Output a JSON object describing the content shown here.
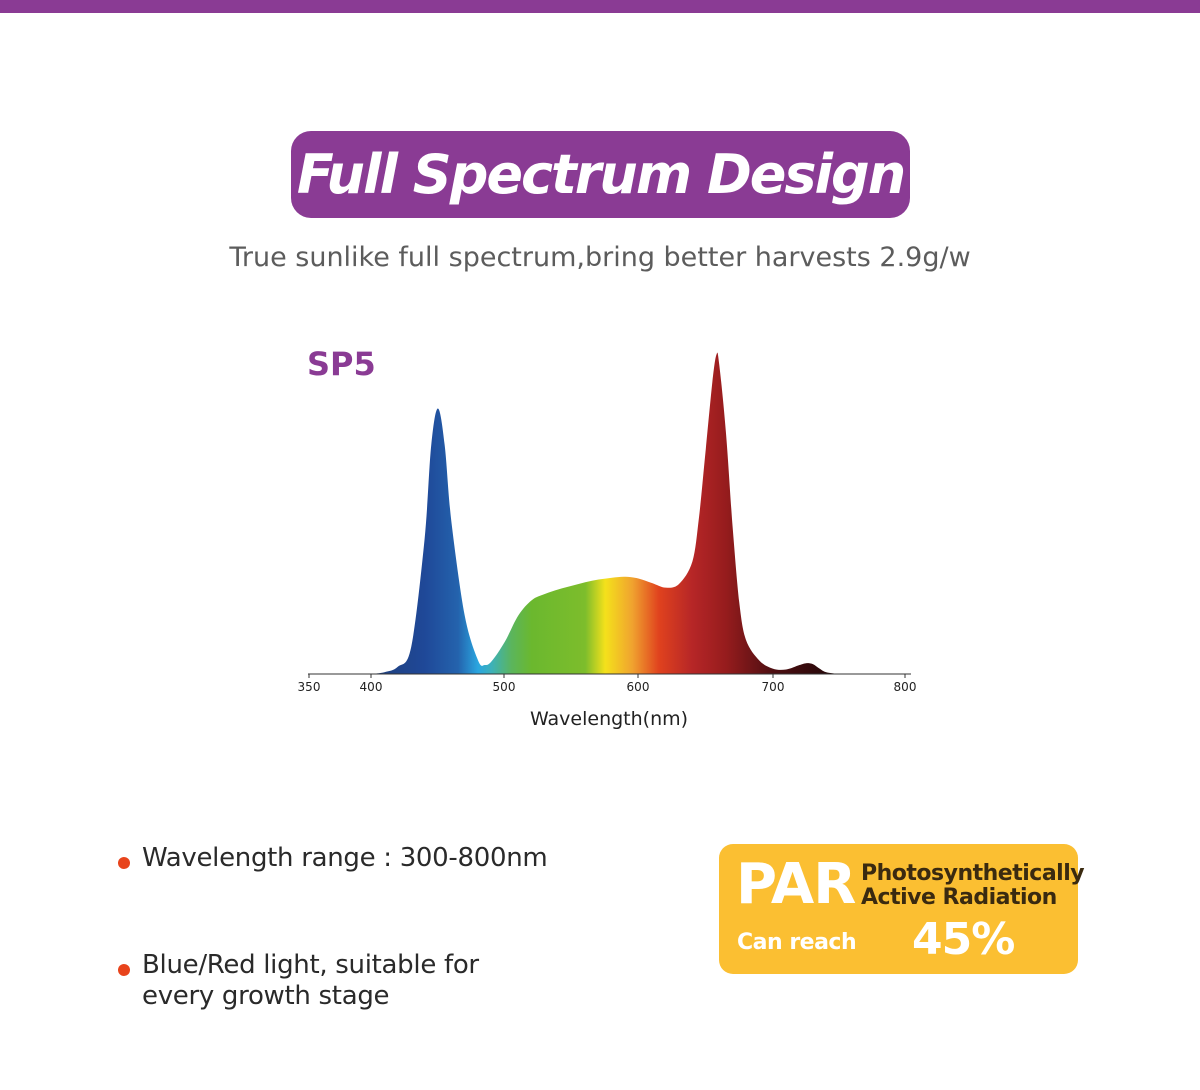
{
  "header": {
    "title": "Full Spectrum Design",
    "subtitle": "True sunlike full spectrum,bring better harvests 2.9g/w",
    "model": "SP5",
    "accent_color": "#8a3b94"
  },
  "chart_data": {
    "type": "area",
    "title": "",
    "xlabel": "Wavelength(nm)",
    "ylabel": "",
    "xlim": [
      350,
      800
    ],
    "xticks": [
      "350",
      "400",
      "500",
      "600",
      "700",
      "800"
    ],
    "x": [
      400,
      410,
      420,
      430,
      440,
      445,
      450,
      455,
      460,
      470,
      480,
      485,
      490,
      500,
      510,
      520,
      530,
      540,
      550,
      560,
      570,
      580,
      590,
      600,
      610,
      620,
      630,
      640,
      645,
      650,
      655,
      658,
      660,
      665,
      670,
      675,
      680,
      690,
      700,
      710,
      720,
      725,
      730,
      735,
      740,
      750
    ],
    "y": [
      0,
      2,
      8,
      30,
      150,
      255,
      295,
      255,
      170,
      65,
      15,
      10,
      14,
      36,
      65,
      82,
      89,
      94,
      98,
      102,
      105,
      107,
      108,
      106,
      101,
      96,
      100,
      125,
      175,
      250,
      325,
      355,
      345,
      270,
      165,
      80,
      38,
      15,
      6,
      5,
      10,
      12,
      11,
      6,
      2,
      0
    ],
    "gradient_stops": [
      {
        "nm": 400,
        "color": "#1f3f7a"
      },
      {
        "nm": 440,
        "color": "#1f4898"
      },
      {
        "nm": 465,
        "color": "#2463ad"
      },
      {
        "nm": 480,
        "color": "#2aa6e0"
      },
      {
        "nm": 490,
        "color": "#3db1b9"
      },
      {
        "nm": 505,
        "color": "#5bb55c"
      },
      {
        "nm": 520,
        "color": "#6bb82e"
      },
      {
        "nm": 560,
        "color": "#7dbd2c"
      },
      {
        "nm": 575,
        "color": "#f4e11b"
      },
      {
        "nm": 595,
        "color": "#f0a32f"
      },
      {
        "nm": 615,
        "color": "#e0421e"
      },
      {
        "nm": 640,
        "color": "#b62627"
      },
      {
        "nm": 665,
        "color": "#961c1d"
      },
      {
        "nm": 700,
        "color": "#4e0f12"
      },
      {
        "nm": 750,
        "color": "#200708"
      }
    ]
  },
  "features": {
    "bullets": [
      "Wavelength range : 300-800nm",
      "Blue/Red light, suitable for every growth stage"
    ],
    "bullet_color": "#e8441c"
  },
  "par_card": {
    "title": "PAR",
    "description_line1": "Photosynthetically",
    "description_line2": "Active Radiation",
    "reach_label": "Can reach",
    "value": "45%",
    "color": "#fbbf32"
  }
}
